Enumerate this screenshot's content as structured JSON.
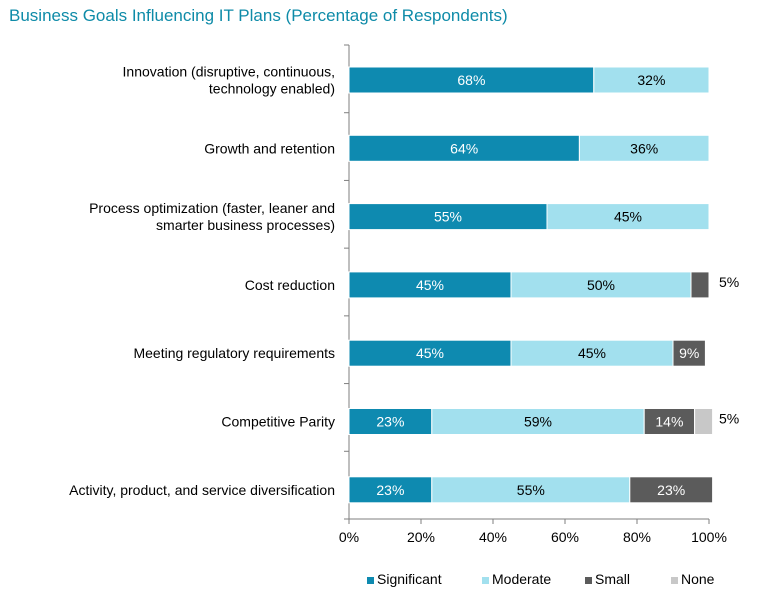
{
  "chart_data": {
    "type": "bar",
    "orientation": "horizontal",
    "stacked": true,
    "title": "Business Goals Influencing IT Plans (Percentage of Respondents)",
    "categories": [
      [
        "Innovation (disruptive, continuous,",
        "technology enabled)"
      ],
      [
        "Growth and retention"
      ],
      [
        "Process optimization (faster, leaner and",
        "smarter business processes)"
      ],
      [
        "Cost reduction"
      ],
      [
        "Meeting regulatory requirements"
      ],
      [
        "Competitive Parity"
      ],
      [
        "Activity, product, and service diversification"
      ]
    ],
    "series": [
      {
        "name": "Significant",
        "color": "#0e8ab0",
        "label_color": "#ffffff",
        "values": [
          68,
          64,
          55,
          45,
          45,
          23,
          23
        ]
      },
      {
        "name": "Moderate",
        "color": "#a2e0ee",
        "label_color": "#000000",
        "values": [
          32,
          36,
          45,
          50,
          45,
          59,
          55
        ]
      },
      {
        "name": "Small",
        "color": "#5b5b5b",
        "label_color": "#ffffff",
        "values": [
          0,
          0,
          0,
          5,
          9,
          14,
          23
        ]
      },
      {
        "name": "None",
        "color": "#c8c8c8",
        "label_color": "#000000",
        "values": [
          0,
          0,
          0,
          0,
          0,
          5,
          0
        ]
      }
    ],
    "data_labels": [
      [
        {
          "series": 0,
          "text": "68%"
        },
        {
          "series": 1,
          "text": "32%"
        }
      ],
      [
        {
          "series": 0,
          "text": "64%"
        },
        {
          "series": 1,
          "text": "36%"
        }
      ],
      [
        {
          "series": 0,
          "text": "55%"
        },
        {
          "series": 1,
          "text": "45%"
        }
      ],
      [
        {
          "series": 0,
          "text": "45%"
        },
        {
          "series": 1,
          "text": "50%"
        },
        {
          "series": 2,
          "text": "5%",
          "outside": true
        }
      ],
      [
        {
          "series": 0,
          "text": "45%"
        },
        {
          "series": 1,
          "text": "45%"
        },
        {
          "series": 2,
          "text": "9%"
        }
      ],
      [
        {
          "series": 0,
          "text": "23%"
        },
        {
          "series": 1,
          "text": "59%"
        },
        {
          "series": 2,
          "text": "14%"
        },
        {
          "series": 3,
          "text": "5%",
          "outside": true
        }
      ],
      [
        {
          "series": 0,
          "text": "23%"
        },
        {
          "series": 1,
          "text": "55%"
        },
        {
          "series": 2,
          "text": "23%"
        }
      ]
    ],
    "xlim": [
      0,
      100
    ],
    "xticks": [
      0,
      20,
      40,
      60,
      80,
      100
    ],
    "xtick_labels": [
      "0%",
      "20%",
      "40%",
      "60%",
      "80%",
      "100%"
    ],
    "xlabel": "",
    "ylabel": "",
    "legend_position": "bottom-right",
    "grid": false
  }
}
